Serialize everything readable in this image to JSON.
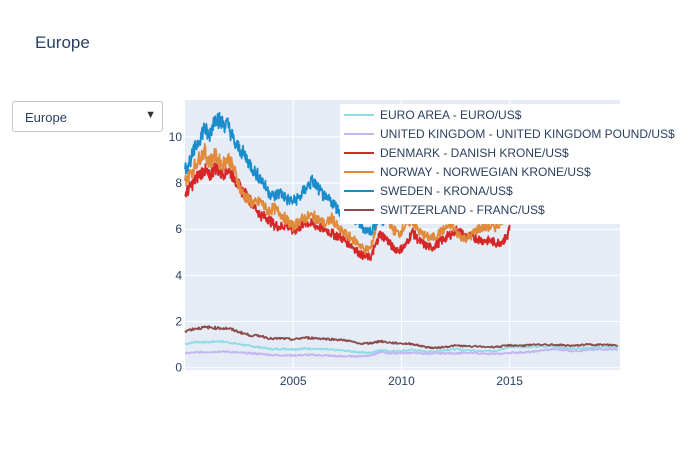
{
  "page": {
    "title": "Europe",
    "dropdown": {
      "selected": "Europe",
      "arrow_icon": "triangle-down-icon"
    }
  },
  "chart_data": {
    "type": "line",
    "title": "",
    "xlabel": "",
    "ylabel": "",
    "xlim": [
      2000.0,
      2020.1
    ],
    "ylim": [
      -0.1,
      11.6
    ],
    "xticks": [
      2005,
      2010,
      2015
    ],
    "yticks": [
      0,
      2,
      4,
      6,
      8,
      10
    ],
    "grid": true,
    "legend_position": "top-right",
    "plot_background": "#e5ecf6",
    "series": [
      {
        "name": "EURO AREA - EURO/US$",
        "color": "#8fdbe6",
        "x": [
          2000.0,
          2000.5,
          2001.0,
          2001.5,
          2002.0,
          2002.5,
          2003.0,
          2003.5,
          2004.0,
          2004.5,
          2005.0,
          2005.5,
          2006.0,
          2006.5,
          2007.0,
          2007.5,
          2008.0,
          2008.5,
          2008.8,
          2009.0,
          2009.5,
          2010.0,
          2010.5,
          2011.0,
          2011.5,
          2012.0,
          2012.5,
          2013.0,
          2014.0,
          2014.5,
          2015.0,
          2015.5,
          2016.0,
          2017.0,
          2017.5,
          2018.0,
          2018.5,
          2019.0,
          2019.5,
          2020.0
        ],
        "y": [
          1.02,
          1.12,
          1.1,
          1.15,
          1.1,
          1.02,
          0.94,
          0.88,
          0.8,
          0.82,
          0.8,
          0.83,
          0.82,
          0.79,
          0.76,
          0.73,
          0.68,
          0.64,
          0.7,
          0.76,
          0.71,
          0.72,
          0.78,
          0.71,
          0.7,
          0.77,
          0.8,
          0.76,
          0.73,
          0.75,
          0.9,
          0.91,
          0.9,
          0.92,
          0.86,
          0.82,
          0.86,
          0.88,
          0.9,
          0.91
        ]
      },
      {
        "name": "UNITED KINGDOM - UNITED KINGDOM POUND/US$",
        "color": "#c3b6f0",
        "x": [
          2000.0,
          2000.5,
          2001.0,
          2001.5,
          2002.0,
          2002.5,
          2003.0,
          2003.5,
          2004.0,
          2004.5,
          2005.0,
          2005.5,
          2006.0,
          2006.5,
          2007.0,
          2007.5,
          2008.0,
          2008.5,
          2008.8,
          2009.0,
          2009.5,
          2010.0,
          2010.5,
          2011.0,
          2011.5,
          2012.0,
          2012.5,
          2013.0,
          2014.0,
          2014.5,
          2015.0,
          2015.5,
          2016.0,
          2016.5,
          2017.0,
          2017.5,
          2018.0,
          2018.5,
          2019.0,
          2019.5,
          2020.0
        ],
        "y": [
          0.62,
          0.66,
          0.68,
          0.7,
          0.69,
          0.65,
          0.62,
          0.6,
          0.55,
          0.54,
          0.53,
          0.55,
          0.55,
          0.53,
          0.5,
          0.49,
          0.5,
          0.52,
          0.6,
          0.68,
          0.62,
          0.63,
          0.65,
          0.61,
          0.61,
          0.63,
          0.63,
          0.64,
          0.61,
          0.59,
          0.65,
          0.66,
          0.68,
          0.75,
          0.8,
          0.77,
          0.72,
          0.76,
          0.78,
          0.8,
          0.8
        ]
      },
      {
        "name": "DENMARK - DANISH KRONE/US$",
        "color": "#d62728",
        "x": [
          2000.0,
          2000.3,
          2000.6,
          2000.9,
          2001.1,
          2001.4,
          2001.7,
          2002.0,
          2002.3,
          2002.6,
          2002.9,
          2003.2,
          2003.5,
          2003.8,
          2004.1,
          2004.4,
          2004.7,
          2005.0,
          2005.3,
          2005.6,
          2005.9,
          2006.2,
          2006.5,
          2006.8,
          2007.1,
          2007.4,
          2007.7,
          2008.0,
          2008.3,
          2008.6,
          2008.8,
          2009.0,
          2009.3,
          2009.6,
          2009.9,
          2010.2,
          2010.5,
          2010.8,
          2011.1,
          2011.4,
          2011.7,
          2012.0,
          2012.3,
          2012.6,
          2012.9,
          2013.2,
          2013.5,
          2013.8,
          2014.1,
          2014.4,
          2014.7,
          2014.9,
          2015.0
        ],
        "y": [
          7.5,
          7.9,
          8.3,
          8.6,
          8.25,
          8.7,
          8.4,
          8.6,
          8.2,
          7.7,
          7.4,
          7.0,
          6.6,
          6.5,
          6.2,
          6.1,
          6.2,
          5.9,
          6.1,
          6.3,
          6.2,
          6.1,
          6.0,
          5.8,
          5.7,
          5.5,
          5.3,
          5.0,
          4.8,
          4.8,
          5.3,
          5.8,
          5.6,
          5.2,
          5.1,
          5.3,
          5.9,
          5.5,
          5.3,
          5.2,
          5.4,
          5.6,
          5.8,
          6.0,
          5.7,
          5.7,
          5.6,
          5.5,
          5.5,
          5.4,
          5.5,
          5.7,
          6.1
        ]
      },
      {
        "name": "NORWAY - NORWEGIAN KRONE/US$",
        "color": "#e08a3c",
        "x": [
          2000.0,
          2000.3,
          2000.6,
          2000.9,
          2001.1,
          2001.4,
          2001.7,
          2002.0,
          2002.3,
          2002.6,
          2002.9,
          2003.2,
          2003.5,
          2003.8,
          2004.1,
          2004.4,
          2004.7,
          2005.0,
          2005.3,
          2005.6,
          2005.9,
          2006.2,
          2006.5,
          2006.8,
          2007.1,
          2007.4,
          2007.7,
          2008.0,
          2008.3,
          2008.6,
          2008.8,
          2009.0,
          2009.3,
          2009.6,
          2009.9,
          2010.2,
          2010.5,
          2010.8,
          2011.1,
          2011.4,
          2011.7,
          2012.0,
          2012.3,
          2012.6,
          2012.9,
          2013.2,
          2013.5,
          2013.8,
          2014.1,
          2014.4,
          2014.7
        ],
        "y": [
          8.1,
          8.5,
          9.0,
          9.4,
          8.9,
          9.2,
          8.8,
          9.1,
          8.5,
          7.6,
          7.3,
          7.1,
          7.2,
          6.8,
          6.9,
          6.7,
          6.4,
          6.1,
          6.4,
          6.5,
          6.6,
          6.4,
          6.2,
          6.5,
          6.0,
          5.8,
          5.6,
          5.4,
          5.1,
          5.2,
          6.0,
          7.0,
          6.6,
          6.0,
          5.8,
          6.2,
          6.4,
          5.9,
          5.7,
          5.6,
          5.8,
          6.0,
          6.2,
          5.8,
          5.6,
          5.7,
          6.0,
          6.1,
          6.1,
          6.1,
          6.5
        ]
      },
      {
        "name": "SWEDEN - KRONA/US$",
        "color": "#1a8ccc",
        "x": [
          2000.0,
          2000.3,
          2000.6,
          2000.9,
          2001.1,
          2001.4,
          2001.7,
          2002.0,
          2002.3,
          2002.6,
          2002.9,
          2003.2,
          2003.5,
          2003.8,
          2004.1,
          2004.4,
          2004.7,
          2005.0,
          2005.3,
          2005.6,
          2005.9,
          2006.2,
          2006.5,
          2006.8,
          2007.1,
          2007.4,
          2007.7,
          2008.0,
          2008.3,
          2008.6,
          2008.9,
          2009.2,
          2009.4
        ],
        "y": [
          8.6,
          9.1,
          9.8,
          10.4,
          10.0,
          10.9,
          10.6,
          10.5,
          9.7,
          9.4,
          9.0,
          8.5,
          8.2,
          7.7,
          7.4,
          7.6,
          7.3,
          7.2,
          7.4,
          7.8,
          8.1,
          7.7,
          7.3,
          7.2,
          6.8,
          6.7,
          6.5,
          6.3,
          6.0,
          5.9,
          6.4,
          6.3,
          7.1
        ]
      },
      {
        "name": "SWITZERLAND - FRANC/US$",
        "color": "#8c4b4b",
        "x": [
          2000.0,
          2000.5,
          2001.0,
          2001.5,
          2002.0,
          2002.5,
          2003.0,
          2003.5,
          2004.0,
          2004.5,
          2005.0,
          2005.5,
          2006.0,
          2006.5,
          2007.0,
          2007.5,
          2008.0,
          2008.5,
          2008.8,
          2009.0,
          2009.5,
          2010.0,
          2010.5,
          2011.0,
          2011.5,
          2012.0,
          2012.5,
          2013.0,
          2014.0,
          2014.5,
          2015.0,
          2015.5,
          2016.0,
          2017.0,
          2017.5,
          2018.0,
          2018.5,
          2019.0,
          2019.5,
          2020.0
        ],
        "y": [
          1.6,
          1.7,
          1.75,
          1.72,
          1.7,
          1.55,
          1.4,
          1.38,
          1.25,
          1.27,
          1.22,
          1.3,
          1.28,
          1.25,
          1.22,
          1.18,
          1.05,
          1.05,
          1.1,
          1.15,
          1.08,
          1.05,
          1.03,
          0.92,
          0.85,
          0.9,
          0.96,
          0.93,
          0.9,
          0.91,
          0.97,
          0.96,
          0.98,
          1.0,
          0.97,
          0.95,
          1.0,
          1.0,
          0.99,
          0.97
        ]
      }
    ]
  }
}
